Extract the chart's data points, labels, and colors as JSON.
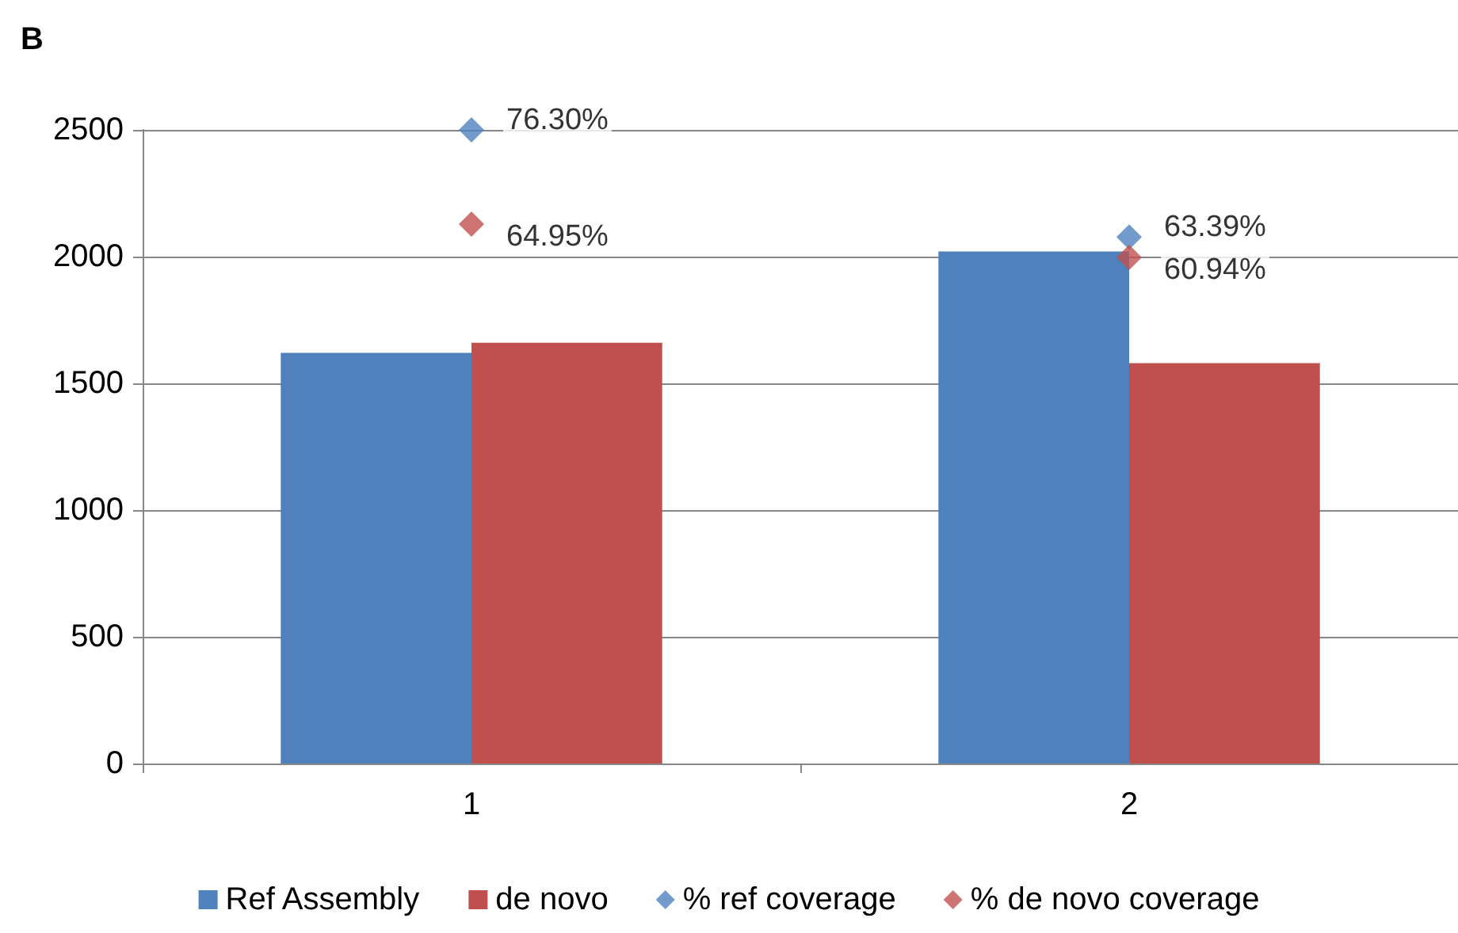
{
  "chart_data": {
    "type": "bar",
    "title": "B",
    "categories": [
      "1",
      "2"
    ],
    "series": [
      {
        "name": "Ref Assembly",
        "color": "#4f81bd",
        "values": [
          1620,
          2020
        ]
      },
      {
        "name": "de novo",
        "color": "#c0504d",
        "values": [
          1660,
          1580
        ]
      },
      {
        "name": "% ref coverage",
        "type": "scatter",
        "axis": "y2",
        "color": "#4f81bd",
        "values": [
          76.3,
          63.39
        ],
        "value_labels": [
          "76.30%",
          "63.39%"
        ]
      },
      {
        "name": "% de novo coverage",
        "type": "scatter",
        "axis": "y2",
        "color": "#c0504d",
        "values": [
          64.95,
          60.94
        ],
        "value_labels": [
          "64.95%",
          "60.94%"
        ]
      }
    ],
    "ylim": [
      0,
      2500
    ],
    "yticks": [
      0,
      500,
      1000,
      1500,
      2000,
      2500
    ],
    "grid": "y",
    "legend": "bottom",
    "marker": "diamond"
  }
}
